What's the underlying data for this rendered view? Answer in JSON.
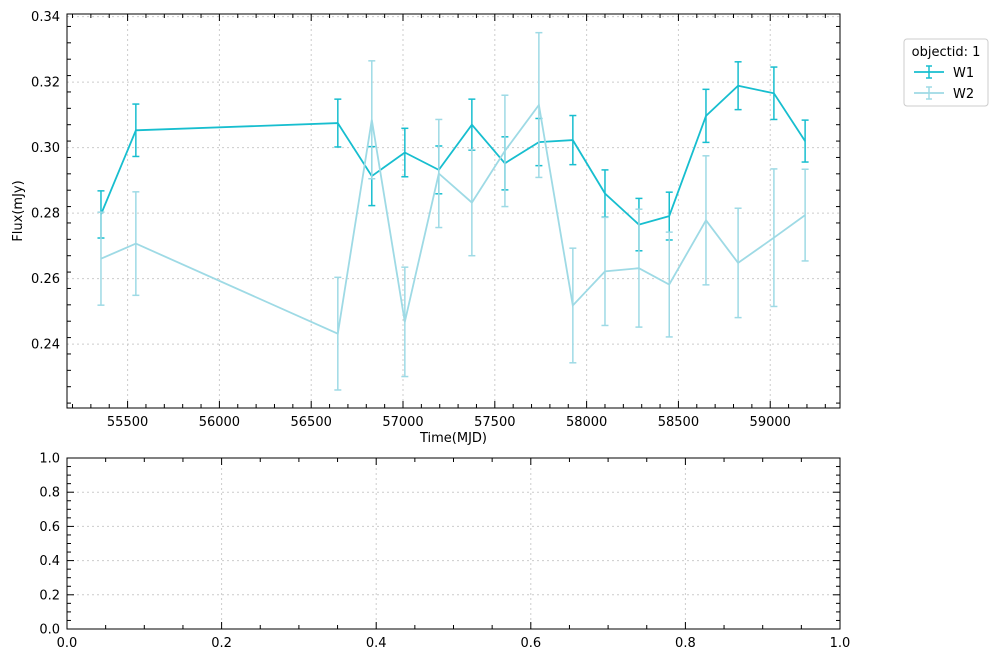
{
  "chart_data": [
    {
      "type": "line",
      "xlabel": "Time(MJD)",
      "ylabel": "Flux(mJy)",
      "xlim": [
        55170,
        59380
      ],
      "ylim": [
        0.2205,
        0.3408
      ],
      "xticks": [
        55500,
        56000,
        56500,
        57000,
        57500,
        58000,
        58500,
        59000
      ],
      "yticks": [
        0.24,
        0.26,
        0.28,
        0.3,
        0.32,
        0.34
      ],
      "ytick_labels": [
        "0.24",
        "0.26",
        "0.28",
        "0.30",
        "0.32",
        "0.34"
      ],
      "grid": true,
      "error_bars": true,
      "legend": {
        "title": "objectid: 1",
        "placement": "upper-right-outside"
      },
      "series": [
        {
          "name": "W1",
          "color": "#17becf",
          "x": [
            55355,
            55545,
            56645,
            56830,
            57010,
            57195,
            57375,
            57555,
            57740,
            57925,
            58100,
            58285,
            58450,
            58650,
            58825,
            59020,
            59190
          ],
          "y": [
            0.2796,
            0.3053,
            0.3075,
            0.2913,
            0.2985,
            0.2932,
            0.307,
            0.2952,
            0.3017,
            0.3023,
            0.286,
            0.2765,
            0.2791,
            0.3097,
            0.3189,
            0.3166,
            0.302
          ],
          "yerr": [
            0.0072,
            0.008,
            0.0073,
            0.009,
            0.0074,
            0.0073,
            0.0078,
            0.0081,
            0.0072,
            0.0075,
            0.0072,
            0.008,
            0.0073,
            0.0081,
            0.0073,
            0.008,
            0.0064
          ]
        },
        {
          "name": "W2",
          "color": "#9edae5",
          "x": [
            55355,
            55545,
            56645,
            56830,
            57010,
            57195,
            57375,
            57555,
            57740,
            57925,
            58100,
            58285,
            58450,
            58650,
            58825,
            59020,
            59190
          ],
          "y": [
            0.2661,
            0.2707,
            0.2432,
            0.3085,
            0.2468,
            0.2921,
            0.2832,
            0.299,
            0.313,
            0.2518,
            0.2622,
            0.2632,
            0.2582,
            0.2778,
            0.2648,
            0.2725,
            0.2794
          ],
          "yerr": [
            0.0142,
            0.0158,
            0.0172,
            0.018,
            0.0167,
            0.0165,
            0.0162,
            0.017,
            0.0221,
            0.0175,
            0.0165,
            0.018,
            0.016,
            0.0197,
            0.0167,
            0.021,
            0.014
          ]
        }
      ]
    },
    {
      "type": "line",
      "xlabel": "",
      "ylabel": "",
      "xlim": [
        0,
        1
      ],
      "ylim": [
        0,
        1
      ],
      "xticks": [
        0,
        0.2,
        0.4,
        0.6,
        0.8,
        1.0
      ],
      "xtick_labels": [
        "0.0",
        "0.2",
        "0.4",
        "0.6",
        "0.8",
        "1.0"
      ],
      "yticks": [
        0,
        0.2,
        0.4,
        0.6,
        0.8,
        1.0
      ],
      "ytick_labels": [
        "0.0",
        "0.2",
        "0.4",
        "0.6",
        "0.8",
        "1.0"
      ],
      "grid": true,
      "series": []
    }
  ]
}
